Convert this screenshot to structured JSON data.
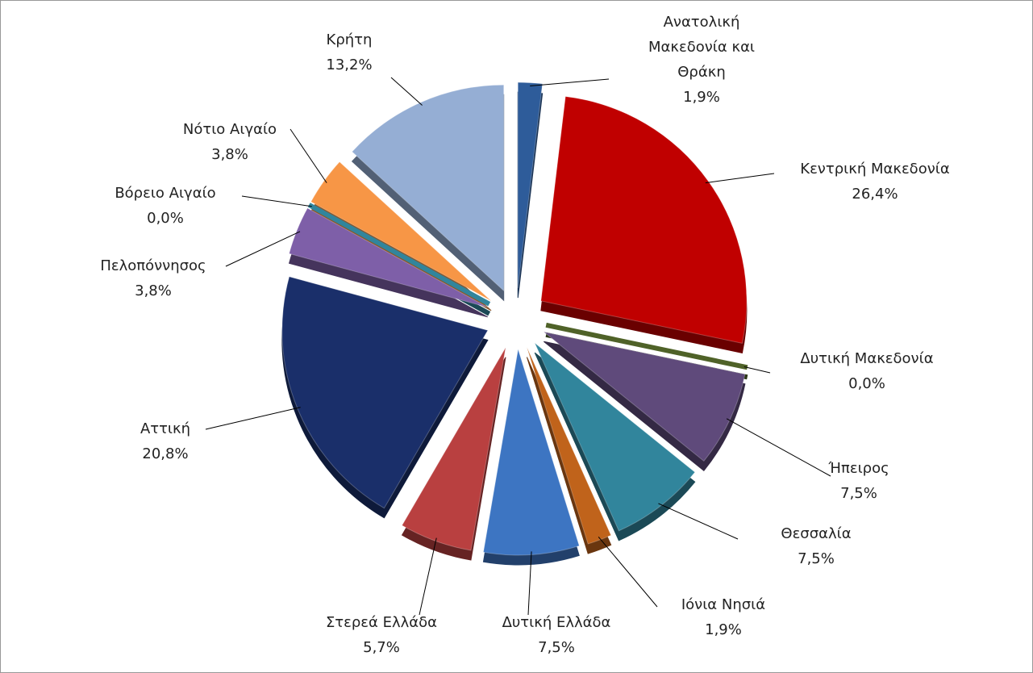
{
  "chart_data": {
    "type": "pie",
    "categories": [
      "Ανατολική Μακεδονία και Θράκη",
      "Κεντρική Μακεδονία",
      "Δυτική Μακεδονία",
      "Ήπειρος",
      "Θεσσαλία",
      "Ιόνια Νησιά",
      "Δυτική Ελλάδα",
      "Στερεά Ελλάδα",
      "Αττική",
      "Πελοπόννησος",
      "Βόρειο Αιγαίο",
      "Νότιο Αιγαίο",
      "Κρήτη"
    ],
    "values": [
      1.9,
      26.4,
      0.0,
      7.5,
      7.5,
      1.9,
      7.5,
      5.7,
      20.8,
      3.8,
      0.0,
      3.8,
      13.2
    ],
    "value_labels": [
      "1,9%",
      "26,4%",
      "0,0%",
      "7,5%",
      "7,5%",
      "1,9%",
      "7,5%",
      "5,7%",
      "20,8%",
      "3,8%",
      "0,0%",
      "3,8%",
      "13,2%"
    ],
    "colors": [
      "#2e5c9a",
      "#c00000",
      "#4f6228",
      "#5f4a7b",
      "#31859c",
      "#c0631b",
      "#3d75c2",
      "#b94040",
      "#1a2f6a",
      "#7e5fa8",
      "#31859c",
      "#f79646",
      "#95aed4"
    ]
  }
}
